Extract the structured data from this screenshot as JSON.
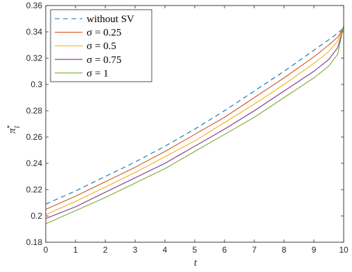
{
  "chart_data": {
    "type": "line",
    "xlabel": "t",
    "ylabel": "π",
    "ylabel_sup": "*",
    "ylabel_sub": "I",
    "xlim": [
      0,
      10
    ],
    "ylim": [
      0.18,
      0.36
    ],
    "xticks": [
      0,
      1,
      2,
      3,
      4,
      5,
      6,
      7,
      8,
      9,
      10
    ],
    "xtick_labels": [
      "0",
      "1",
      "2",
      "3",
      "4",
      "5",
      "6",
      "7",
      "8",
      "9",
      "10"
    ],
    "yticks": [
      0.18,
      0.2,
      0.22,
      0.24,
      0.26,
      0.28,
      0.3,
      0.32,
      0.34,
      0.36
    ],
    "ytick_labels": [
      "0.18",
      "0.2",
      "0.22",
      "0.24",
      "0.26",
      "0.28",
      "0.3",
      "0.32",
      "0.34",
      "0.36"
    ],
    "grid": false,
    "legend_position": "top-left",
    "x": [
      0,
      1,
      2,
      3,
      4,
      5,
      6,
      7,
      8,
      9,
      9.5,
      9.8,
      10
    ],
    "series": [
      {
        "name": "without SV",
        "legend_label": "without SV",
        "color": "#0072BD",
        "dashed": true,
        "values": [
          0.209,
          0.219,
          0.23,
          0.241,
          0.253,
          0.266,
          0.28,
          0.295,
          0.31,
          0.326,
          0.334,
          0.339,
          0.343
        ]
      },
      {
        "name": "σ = 0.25",
        "legend_label": "σ = 0.25",
        "color": "#D95319",
        "dashed": false,
        "values": [
          0.205,
          0.215,
          0.226,
          0.237,
          0.249,
          0.262,
          0.275,
          0.29,
          0.305,
          0.321,
          0.33,
          0.336,
          0.343
        ]
      },
      {
        "name": "σ = 0.5",
        "legend_label": "σ = 0.5",
        "color": "#EDB120",
        "dashed": false,
        "values": [
          0.201,
          0.211,
          0.222,
          0.233,
          0.245,
          0.257,
          0.271,
          0.285,
          0.3,
          0.316,
          0.325,
          0.333,
          0.344
        ]
      },
      {
        "name": "σ = 0.75",
        "legend_label": "σ = 0.75",
        "color": "#7E2F8E",
        "dashed": false,
        "values": [
          0.198,
          0.207,
          0.218,
          0.229,
          0.24,
          0.253,
          0.266,
          0.28,
          0.295,
          0.31,
          0.319,
          0.328,
          0.344
        ]
      },
      {
        "name": "σ = 1",
        "legend_label": "σ = 1",
        "color": "#77AC30",
        "dashed": false,
        "values": [
          0.194,
          0.204,
          0.214,
          0.225,
          0.236,
          0.249,
          0.262,
          0.275,
          0.29,
          0.305,
          0.314,
          0.323,
          0.345
        ]
      }
    ]
  }
}
